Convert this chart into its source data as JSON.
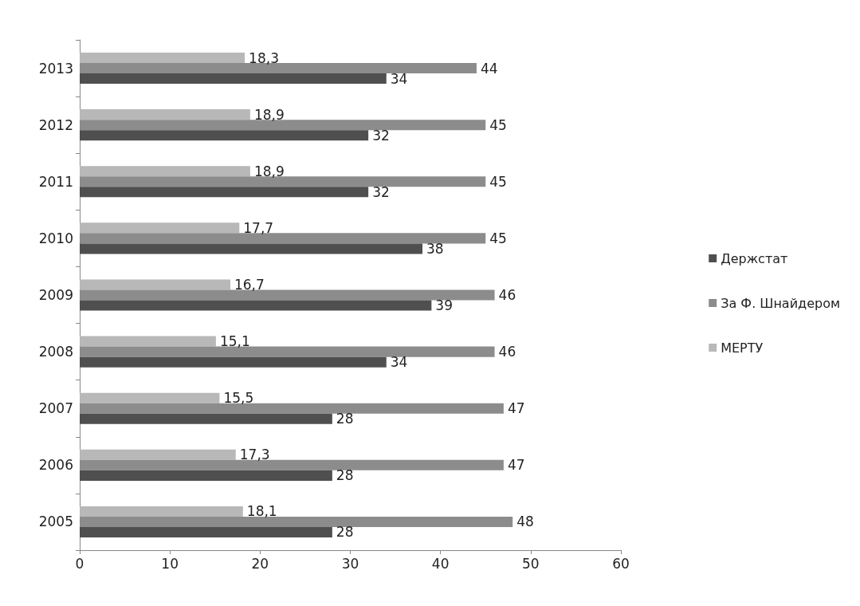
{
  "chart_data": {
    "type": "bar",
    "orientation": "horizontal",
    "categories": [
      "2013",
      "2012",
      "2011",
      "2010",
      "2009",
      "2008",
      "2007",
      "2006",
      "2005"
    ],
    "series": [
      {
        "name": "Держстат",
        "color": "#4f4f4f",
        "values": [
          34,
          32,
          32,
          38,
          39,
          34,
          28,
          28,
          28
        ],
        "value_labels": [
          "34",
          "32",
          "32",
          "38",
          "39",
          "34",
          "28",
          "28",
          "28"
        ]
      },
      {
        "name": "За Ф. Шнайдером",
        "color": "#8c8c8c",
        "values": [
          44,
          45,
          45,
          45,
          46,
          46,
          47,
          47,
          48
        ],
        "value_labels": [
          "44",
          "45",
          "45",
          "45",
          "46",
          "46",
          "47",
          "47",
          "48"
        ]
      },
      {
        "name": "МЕРТУ",
        "color": "#b8b8b8",
        "values": [
          18.3,
          18.9,
          18.9,
          17.7,
          16.7,
          15.1,
          15.5,
          17.3,
          18.1
        ],
        "value_labels": [
          "18,3",
          "18,9",
          "18,9",
          "17,7",
          "16,7",
          "15,1",
          "15,5",
          "17,3",
          "18,1"
        ]
      }
    ],
    "xlim": [
      0,
      60
    ],
    "xticks": [
      0,
      10,
      20,
      30,
      40,
      50,
      60
    ],
    "grid": false,
    "legend": "right"
  }
}
